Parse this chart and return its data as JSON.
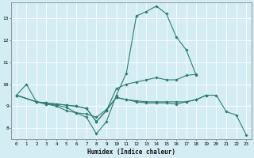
{
  "title": "",
  "xlabel": "Humidex (Indice chaleur)",
  "ylabel": "",
  "background_color": "#d4edf4",
  "grid_color": "#ffffff",
  "line_color": "#2d7d6e",
  "xlim": [
    -0.5,
    23.5
  ],
  "ylim": [
    7.5,
    13.7
  ],
  "xticks": [
    0,
    1,
    2,
    3,
    4,
    5,
    6,
    7,
    8,
    9,
    10,
    11,
    12,
    13,
    14,
    15,
    16,
    17,
    18,
    19,
    20,
    21,
    22,
    23
  ],
  "yticks": [
    8,
    9,
    10,
    11,
    12,
    13
  ],
  "lines": [
    {
      "x": [
        0,
        1,
        2,
        3,
        4,
        5,
        6,
        7,
        8,
        9,
        10,
        11,
        12,
        13,
        14,
        15,
        16,
        17,
        18
      ],
      "y": [
        9.5,
        10.0,
        9.2,
        9.1,
        9.0,
        8.8,
        8.7,
        8.5,
        7.75,
        8.3,
        9.5,
        10.5,
        13.1,
        13.3,
        13.55,
        13.2,
        12.15,
        11.55,
        10.4
      ]
    },
    {
      "x": [
        0,
        2,
        3,
        4,
        5,
        6,
        7,
        8,
        9,
        10,
        11,
        12,
        13,
        14,
        15,
        16,
        17,
        18,
        19
      ],
      "y": [
        9.5,
        9.2,
        9.15,
        9.1,
        9.05,
        9.0,
        8.9,
        8.3,
        8.8,
        9.4,
        9.3,
        9.25,
        9.2,
        9.2,
        9.2,
        9.2,
        9.2,
        9.3,
        9.5
      ]
    },
    {
      "x": [
        0,
        2,
        3,
        4,
        5,
        6,
        7,
        8,
        9,
        10,
        11,
        12,
        13,
        14,
        15,
        16,
        17,
        18
      ],
      "y": [
        9.5,
        9.2,
        9.15,
        9.1,
        9.05,
        9.0,
        8.9,
        8.3,
        8.8,
        9.8,
        10.0,
        10.1,
        10.2,
        10.3,
        10.2,
        10.2,
        10.4,
        10.45
      ]
    },
    {
      "x": [
        0,
        2,
        3,
        4,
        5,
        6,
        7,
        8,
        9,
        10,
        11,
        12,
        13,
        14,
        15,
        16,
        17,
        18,
        19,
        20,
        21,
        22,
        23
      ],
      "y": [
        9.5,
        9.2,
        9.1,
        9.05,
        8.95,
        8.7,
        8.65,
        8.5,
        8.85,
        9.4,
        9.3,
        9.2,
        9.15,
        9.15,
        9.15,
        9.1,
        9.2,
        9.3,
        9.5,
        9.5,
        8.75,
        8.6,
        7.7
      ]
    }
  ]
}
